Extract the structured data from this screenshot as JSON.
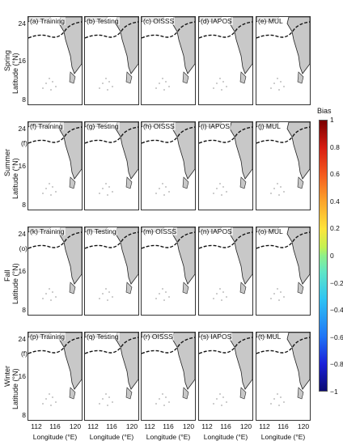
{
  "panels": [
    {
      "label": "(a) Training"
    },
    {
      "label": "(b) Testing"
    },
    {
      "label": "(c) OISSS"
    },
    {
      "label": "(d) IAPOS"
    },
    {
      "label": "(e) MUL"
    },
    {
      "label": "(f) Training"
    },
    {
      "label": "(g) Testing"
    },
    {
      "label": "(h) OISSS"
    },
    {
      "label": "(i) IAPOS"
    },
    {
      "label": "(j) MUL"
    },
    {
      "label": "(k) Training"
    },
    {
      "label": "(l) Testing"
    },
    {
      "label": "(m) OISSS"
    },
    {
      "label": "(n) IAPOS"
    },
    {
      "label": "(o) MUL"
    },
    {
      "label": "(p) Training"
    },
    {
      "label": "(q) Testing"
    },
    {
      "label": "(r) OISSS"
    },
    {
      "label": "(s) IAPOS"
    },
    {
      "label": "(t) MUL"
    }
  ],
  "rows": [
    {
      "season": "Spring",
      "ylabel": "Latitude (°N)",
      "ghost": ""
    },
    {
      "season": "Summer",
      "ylabel": "Latitude (°N)",
      "ghost": "(f)"
    },
    {
      "season": "Fall",
      "ylabel": "Latitude (°N)",
      "ghost": "(o)"
    },
    {
      "season": "Winter",
      "ylabel": "Latitude (°N)",
      "ghost": "(f)"
    }
  ],
  "yticks": [
    "24",
    "16",
    "8"
  ],
  "xticks": [
    "112",
    "116",
    "120"
  ],
  "xlabel": "Longitude (°E)",
  "colorbar": {
    "title": "Bias",
    "ticks": [
      "1",
      "0.8",
      "0.6",
      "0.4",
      "0.2",
      "0",
      "−0.2",
      "−0.4",
      "−0.6",
      "−0.8",
      "−1"
    ]
  },
  "colors": {
    "land": "#c8c8c8",
    "coast": "#222222",
    "boundary": "#111111"
  }
}
